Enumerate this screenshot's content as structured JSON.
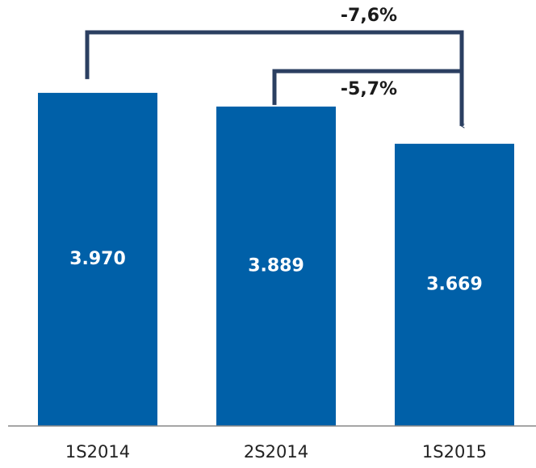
{
  "chart_data": {
    "type": "bar",
    "categories": [
      "1S2014",
      "2S2014",
      "1S2015"
    ],
    "values": [
      3970,
      3889,
      3669
    ],
    "value_labels": [
      "3.970",
      "3.889",
      "3.669"
    ],
    "color": "#0060a8",
    "ylim": [
      2000,
      4500
    ],
    "annotations": [
      "-7,6%",
      "-5,7%"
    ]
  }
}
